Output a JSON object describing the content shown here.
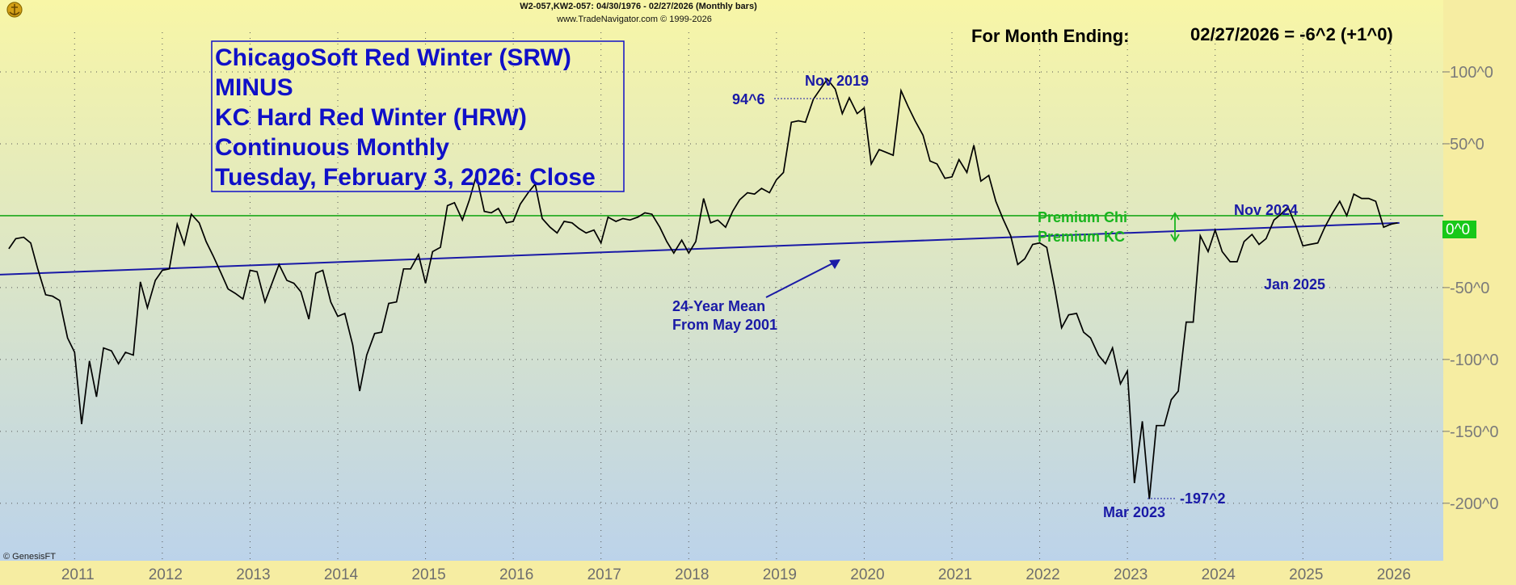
{
  "header": {
    "series_info": "W2-057,KW2-057:  04/30/1976 - 02/27/2026  (Monthly bars)",
    "copyright": "www.TradeNavigator.com © 1999-2026",
    "month_ending_label": "For Month Ending:",
    "month_ending_value": "02/27/2026 = -6^2 (+1^0)"
  },
  "title_lines": [
    "ChicagoSoft Red Winter (SRW)",
    "MINUS",
    "KC Hard Red Winter (HRW)",
    "Continuous Monthly",
    "Tuesday, February 3, 2026: Close"
  ],
  "annotations": {
    "nov2019_label": "Nov 2019",
    "high_value": "94^6",
    "premium_chi": "Premium Chi",
    "premium_kc": "Premium KC",
    "nov2024_label": "Nov 2024",
    "jan2025_label": "Jan 2025",
    "mean_line1": "24-Year Mean",
    "mean_line2": "From May 2001",
    "mar2023_label": "Mar 2023",
    "low_value": "-197^2",
    "zero_label": "0^0",
    "genesis": "© GenesisFT"
  },
  "colors": {
    "background_top": "#f8f6a6",
    "background_bottom": "#bcd3ea",
    "axis_band": "#f6eda2",
    "price_line": "#000000",
    "mean_line": "#1a1aa6",
    "zero_line": "#1aa81a",
    "title_text": "#1010c8",
    "zero_badge": "#18c818"
  },
  "chart_data": {
    "type": "line",
    "title": "ChicagoSoft Red Winter (SRW) MINUS KC Hard Red Winter (HRW) Continuous Monthly",
    "xlabel": "",
    "ylabel": "",
    "x_ticks": [
      "2011",
      "2012",
      "2013",
      "2014",
      "2015",
      "2016",
      "2017",
      "2018",
      "2019",
      "2020",
      "2021",
      "2022",
      "2023",
      "2024",
      "2025",
      "2026"
    ],
    "y_ticks": [
      {
        "value": 100,
        "label": "100^0"
      },
      {
        "value": 50,
        "label": "50^0"
      },
      {
        "value": -50,
        "label": "-50^0"
      },
      {
        "value": -100,
        "label": "-100^0"
      },
      {
        "value": -150,
        "label": "-150^0"
      },
      {
        "value": -200,
        "label": "-200^0"
      }
    ],
    "ylim": [
      -240,
      150
    ],
    "xlim": [
      2010.15,
      2026.6
    ],
    "grid": true,
    "zero_line": 0,
    "mean_line": {
      "label": "24-Year Mean From May 2001",
      "start": [
        2010.15,
        -41
      ],
      "end": [
        2026.1,
        -5
      ]
    },
    "high": {
      "date": "Nov 2019",
      "value": "94^6"
    },
    "low": {
      "date": "Mar 2023",
      "value": "-197^2"
    },
    "last": {
      "date": "02/27/2026",
      "value": "-6^2",
      "change": "+1^0"
    },
    "series": [
      {
        "x": [
          2010.25,
          2010.33,
          2010.42,
          2010.5,
          2010.58,
          2010.67,
          2010.75,
          2010.83,
          2010.92,
          2011.0,
          2011.08,
          2011.17,
          2011.25,
          2011.33,
          2011.42,
          2011.5,
          2011.58,
          2011.67,
          2011.75,
          2011.83,
          2011.92,
          2012.0,
          2012.08,
          2012.17,
          2012.25,
          2012.33,
          2012.42,
          2012.5,
          2012.58,
          2012.67,
          2012.75,
          2012.83,
          2012.92,
          2013.0,
          2013.08,
          2013.17,
          2013.25,
          2013.33,
          2013.42,
          2013.5,
          2013.58,
          2013.67,
          2013.75,
          2013.83,
          2013.92,
          2014.0,
          2014.08,
          2014.17,
          2014.25,
          2014.33,
          2014.42,
          2014.5,
          2014.58,
          2014.67,
          2014.75,
          2014.83,
          2014.92,
          2015.0,
          2015.08,
          2015.17,
          2015.25,
          2015.33,
          2015.42,
          2015.5,
          2015.58,
          2015.67,
          2015.75,
          2015.83,
          2015.92,
          2016.0,
          2016.08,
          2016.17,
          2016.25,
          2016.33,
          2016.42,
          2016.5,
          2016.58,
          2016.67,
          2016.75,
          2016.83,
          2016.92,
          2017.0,
          2017.08,
          2017.17,
          2017.25,
          2017.33,
          2017.42,
          2017.5,
          2017.58,
          2017.67,
          2017.75,
          2017.83,
          2017.92,
          2018.0,
          2018.08,
          2018.17,
          2018.25,
          2018.33,
          2018.42,
          2018.5,
          2018.58,
          2018.67,
          2018.75,
          2018.83,
          2018.92,
          2019.0,
          2019.08,
          2019.17,
          2019.25,
          2019.33,
          2019.42,
          2019.5,
          2019.58,
          2019.67,
          2019.75,
          2019.83,
          2019.92,
          2020.0,
          2020.08,
          2020.17,
          2020.25,
          2020.33,
          2020.42,
          2020.5,
          2020.58,
          2020.67,
          2020.75,
          2020.83,
          2020.92,
          2021.0,
          2021.08,
          2021.17,
          2021.25,
          2021.33,
          2021.42,
          2021.5,
          2021.58,
          2021.67,
          2021.75,
          2021.83,
          2021.92,
          2022.0,
          2022.08,
          2022.17,
          2022.25,
          2022.33,
          2022.42,
          2022.5,
          2022.58,
          2022.67,
          2022.75,
          2022.83,
          2022.92,
          2023.0,
          2023.08,
          2023.17,
          2023.25,
          2023.33,
          2023.42,
          2023.5,
          2023.58,
          2023.67,
          2023.75,
          2023.83,
          2023.92,
          2024.0,
          2024.08,
          2024.17,
          2024.25,
          2024.33,
          2024.42,
          2024.5,
          2024.58,
          2024.67,
          2024.75,
          2024.83,
          2024.92,
          2025.0,
          2025.08,
          2025.17,
          2025.25,
          2025.33,
          2025.42,
          2025.5,
          2025.58,
          2025.67,
          2025.75,
          2025.83,
          2025.92,
          2026.0,
          2026.08
        ],
        "values": [
          -23,
          -16,
          -15,
          -19,
          -37,
          -55,
          -56,
          -59,
          -85,
          -95,
          -145,
          -101,
          -126,
          -92,
          -94,
          -103,
          -95,
          -97,
          -46,
          -64,
          -45,
          -38,
          -37,
          -6,
          -20,
          1,
          -5,
          -18,
          -28,
          -40,
          -51,
          -54,
          -58,
          -38,
          -39,
          -60,
          -47,
          -34,
          -45,
          -47,
          -53,
          -72,
          -40,
          -38,
          -60,
          -70,
          -68,
          -90,
          -122,
          -97,
          -82,
          -81,
          -61,
          -60,
          -37,
          -37,
          -27,
          -47,
          -25,
          -22,
          7,
          9,
          -3,
          11,
          28,
          3,
          2,
          5,
          -5,
          -4,
          8,
          16,
          22,
          -2,
          -8,
          -12,
          -4,
          -5,
          -9,
          -12,
          -10,
          -19,
          -1,
          -4,
          -2,
          -3,
          -1,
          2,
          1,
          -8,
          -18,
          -26,
          -17,
          -26,
          -18,
          12,
          -5,
          -3,
          -8,
          3,
          11,
          16,
          15,
          19,
          16,
          25,
          30,
          65,
          66,
          65,
          81,
          88,
          95,
          88,
          71,
          82,
          71,
          75,
          36,
          46,
          44,
          42,
          87,
          76,
          66,
          56,
          38,
          36,
          26,
          27,
          39,
          30,
          49,
          24,
          28,
          10,
          -2,
          -14,
          -34,
          -30,
          -20,
          -19,
          -22,
          -50,
          -78,
          -69,
          -68,
          -81,
          -85,
          -97,
          -103,
          -92,
          -117,
          -108,
          -186,
          -143,
          -197,
          -146,
          -146,
          -128,
          -122,
          -74,
          -74,
          -14,
          -25,
          -10,
          -25,
          -32,
          -32,
          -18,
          -13,
          -20,
          -16,
          -3,
          1,
          6,
          -7,
          -21,
          -20,
          -19,
          -8,
          1,
          10,
          0,
          15,
          12,
          12,
          10,
          -8,
          -6,
          -5
        ],
        "name": ""
      }
    ]
  }
}
